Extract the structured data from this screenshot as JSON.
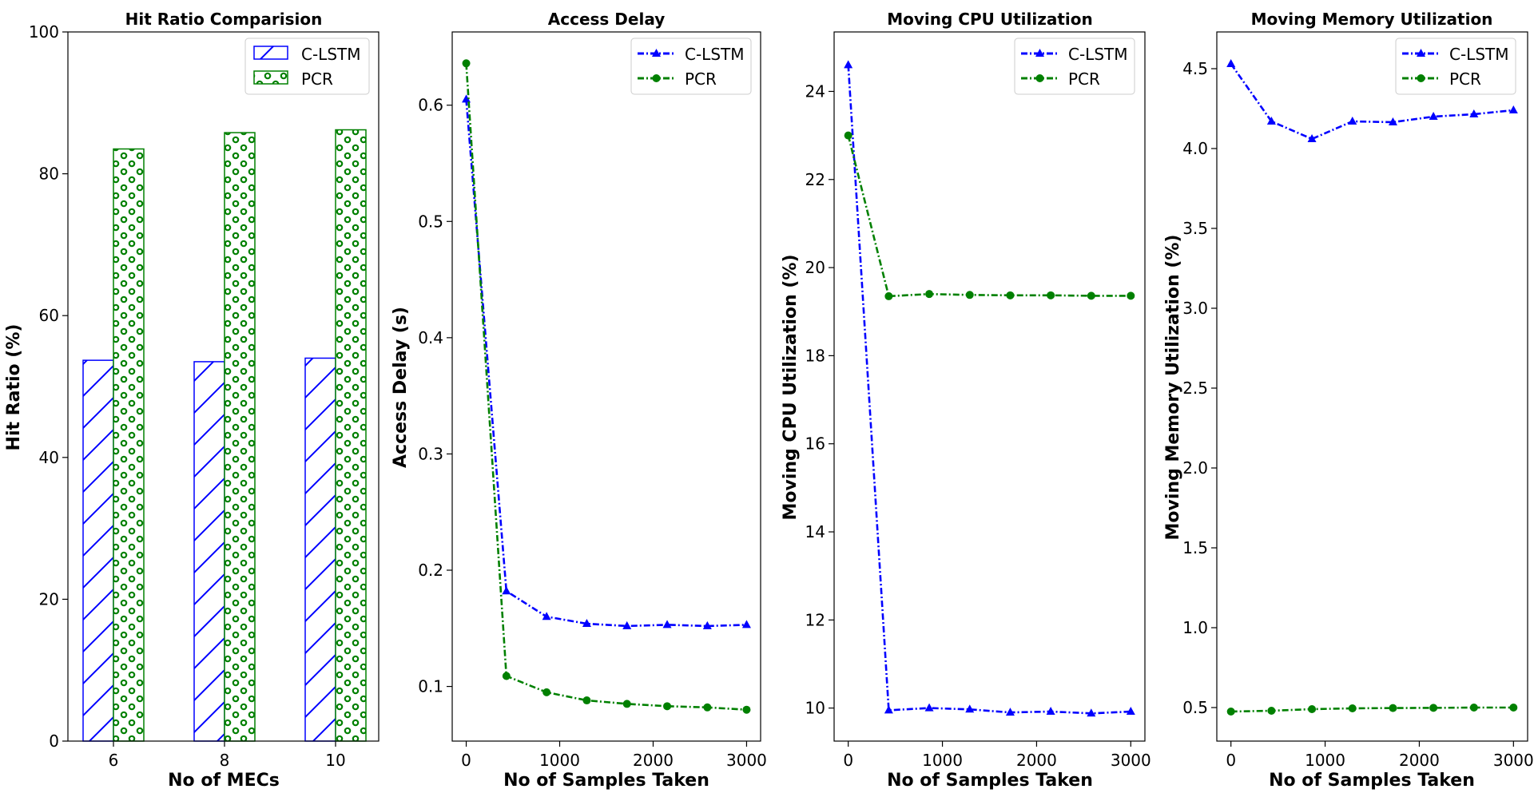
{
  "figure": {
    "background": "#ffffff"
  },
  "colors": {
    "clstm": "#0000ff",
    "pcr": "#008000"
  },
  "chart_data": [
    {
      "id": "hit_ratio",
      "type": "bar",
      "title": "Hit Ratio Comparision",
      "xlabel": "No of MECs",
      "ylabel": "Hit Ratio (%)",
      "categories": [
        "6",
        "8",
        "10"
      ],
      "ylim": [
        0,
        100
      ],
      "yticks": [
        0,
        20,
        40,
        60,
        80,
        100
      ],
      "legend_position": "top-right",
      "series": [
        {
          "name": "C-LSTM",
          "color": "#0000ff",
          "hatch": "diagonal",
          "values": [
            53.7,
            53.5,
            54.0
          ]
        },
        {
          "name": "PCR",
          "color": "#008000",
          "hatch": "circles",
          "values": [
            83.5,
            85.8,
            86.2
          ]
        }
      ]
    },
    {
      "id": "access_delay",
      "type": "line",
      "title": "Access Delay",
      "xlabel": "No of Samples Taken",
      "ylabel": "Access Delay (s)",
      "xlim": [
        -150,
        3150
      ],
      "ylim": [
        0.053,
        0.663
      ],
      "xticks": [
        0,
        1000,
        2000,
        3000
      ],
      "yticks": [
        0.1,
        0.2,
        0.3,
        0.4,
        0.5,
        0.6
      ],
      "ytick_labels": [
        "0.1",
        "0.2",
        "0.3",
        "0.4",
        "0.5",
        "0.6"
      ],
      "legend_position": "top-right",
      "x": [
        0,
        430,
        860,
        1290,
        1720,
        2150,
        2580,
        3000
      ],
      "series": [
        {
          "name": "C-LSTM",
          "color": "#0000ff",
          "marker": "triangle",
          "values": [
            0.605,
            0.182,
            0.16,
            0.154,
            0.152,
            0.153,
            0.152,
            0.153
          ]
        },
        {
          "name": "PCR",
          "color": "#008000",
          "marker": "circle",
          "values": [
            0.636,
            0.109,
            0.095,
            0.088,
            0.085,
            0.083,
            0.082,
            0.08
          ]
        }
      ]
    },
    {
      "id": "moving_cpu",
      "type": "line",
      "title": "Moving CPU Utilization",
      "xlabel": "No of Samples Taken",
      "ylabel": "Moving CPU Utilization (%)",
      "xlim": [
        -150,
        3150
      ],
      "ylim": [
        9.25,
        25.35
      ],
      "xticks": [
        0,
        1000,
        2000,
        3000
      ],
      "yticks": [
        10,
        12,
        14,
        16,
        18,
        20,
        22,
        24
      ],
      "legend_position": "top-right",
      "x": [
        0,
        430,
        860,
        1290,
        1720,
        2150,
        2580,
        3000
      ],
      "series": [
        {
          "name": "C-LSTM",
          "color": "#0000ff",
          "marker": "triangle",
          "values": [
            24.6,
            9.95,
            10.0,
            9.97,
            9.9,
            9.92,
            9.88,
            9.92
          ]
        },
        {
          "name": "PCR",
          "color": "#008000",
          "marker": "circle",
          "values": [
            23.0,
            19.35,
            19.4,
            19.38,
            19.37,
            19.37,
            19.36,
            19.36
          ]
        }
      ]
    },
    {
      "id": "moving_memory",
      "type": "line",
      "title": "Moving Memory Utilization",
      "xlabel": "No of Samples Taken",
      "ylabel": "Moving Memory Utilization (%)",
      "xlim": [
        -150,
        3150
      ],
      "ylim": [
        0.29,
        4.73
      ],
      "xticks": [
        0,
        1000,
        2000,
        3000
      ],
      "yticks": [
        0.5,
        1.0,
        1.5,
        2.0,
        2.5,
        3.0,
        3.5,
        4.0,
        4.5
      ],
      "ytick_labels": [
        "0.5",
        "1.0",
        "1.5",
        "2.0",
        "2.5",
        "3.0",
        "3.5",
        "4.0",
        "4.5"
      ],
      "legend_position": "top-right",
      "x": [
        0,
        430,
        860,
        1290,
        1720,
        2150,
        2580,
        3000
      ],
      "series": [
        {
          "name": "C-LSTM",
          "color": "#0000ff",
          "marker": "triangle",
          "values": [
            4.53,
            4.17,
            4.06,
            4.17,
            4.165,
            4.2,
            4.215,
            4.24
          ]
        },
        {
          "name": "PCR",
          "color": "#008000",
          "marker": "circle",
          "values": [
            0.475,
            0.48,
            0.49,
            0.495,
            0.497,
            0.498,
            0.5,
            0.5
          ]
        }
      ]
    }
  ]
}
